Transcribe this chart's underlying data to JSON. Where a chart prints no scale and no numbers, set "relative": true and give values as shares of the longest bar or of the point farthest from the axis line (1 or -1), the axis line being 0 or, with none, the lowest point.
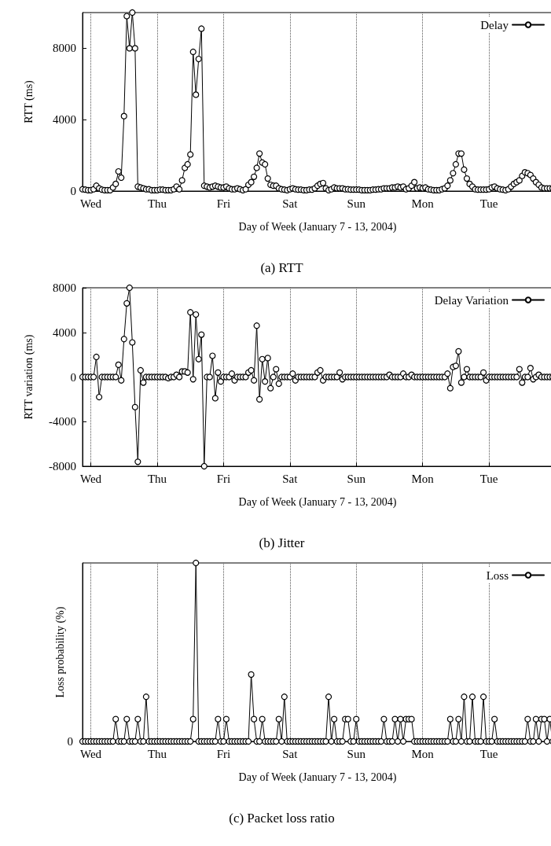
{
  "chart_data": [
    {
      "type": "line",
      "title": "(a) RTT",
      "xlabel": "Day of Week (January 7 - 13, 2004)",
      "ylabel": "RTT (ms)",
      "categories": [
        null,
        null,
        null,
        "Wed",
        null,
        null,
        null,
        null,
        null,
        null,
        null,
        null,
        null,
        null,
        null,
        null,
        null,
        null,
        null,
        null,
        null,
        null,
        null,
        null,
        null,
        null,
        null,
        "Thu",
        null,
        null,
        null,
        null,
        null,
        null,
        null,
        null,
        null,
        null,
        null,
        null,
        null,
        null,
        null,
        null,
        null,
        null,
        null,
        null,
        null,
        null,
        null,
        "Fri",
        null,
        null,
        null,
        null,
        null,
        null,
        null,
        null,
        null,
        null,
        null,
        null,
        null,
        null,
        null,
        null,
        null,
        null,
        null,
        null,
        null,
        null,
        null,
        "Sat",
        null,
        null,
        null,
        null,
        null,
        null,
        null,
        null,
        null,
        null,
        null,
        null,
        null,
        null,
        null,
        null,
        null,
        null,
        null,
        null,
        null,
        null,
        null,
        "Sun",
        null,
        null,
        null,
        null,
        null,
        null,
        null,
        null,
        null,
        null,
        null,
        null,
        null,
        null,
        null,
        null,
        null,
        null,
        null,
        null,
        null,
        null,
        null,
        "Mon",
        null,
        null,
        null,
        null,
        null,
        null,
        null,
        null,
        null,
        null,
        null,
        null,
        null,
        null,
        null,
        null,
        null,
        null,
        null,
        null,
        null,
        null,
        null,
        "Tue",
        null,
        null,
        null,
        null,
        null,
        null,
        null,
        null,
        null,
        null,
        null,
        null,
        null,
        null,
        null,
        null,
        null,
        null,
        null,
        null,
        null,
        null,
        null
      ],
      "ylim": [
        0,
        10000
      ],
      "yticks": [
        0,
        4000,
        8000
      ],
      "grid": "x",
      "legend": "top right",
      "marker": "circle",
      "line_style": "solid",
      "series": [
        {
          "name": "Delay",
          "color": "#000000",
          "values": [
            100,
            80,
            50,
            50,
            100,
            300,
            150,
            80,
            50,
            50,
            50,
            200,
            400,
            1100,
            750,
            4200,
            9800,
            8000,
            10000,
            8000,
            250,
            200,
            150,
            100,
            100,
            50,
            50,
            50,
            80,
            80,
            50,
            50,
            50,
            100,
            250,
            100,
            600,
            1300,
            1500,
            2050,
            7800,
            5400,
            7400,
            9100,
            300,
            250,
            200,
            250,
            300,
            250,
            200,
            200,
            250,
            150,
            100,
            100,
            150,
            100,
            50,
            100,
            350,
            500,
            800,
            1300,
            2100,
            1600,
            1500,
            700,
            350,
            300,
            300,
            150,
            100,
            80,
            50,
            100,
            150,
            100,
            80,
            80,
            50,
            50,
            80,
            80,
            150,
            300,
            400,
            450,
            150,
            50,
            100,
            200,
            150,
            150,
            150,
            100,
            100,
            80,
            80,
            80,
            80,
            50,
            50,
            50,
            50,
            80,
            80,
            100,
            100,
            150,
            150,
            150,
            200,
            200,
            250,
            200,
            250,
            100,
            150,
            300,
            500,
            150,
            200,
            150,
            200,
            100,
            80,
            50,
            50,
            50,
            100,
            150,
            300,
            600,
            1000,
            1500,
            2100,
            2100,
            1200,
            700,
            400,
            250,
            100,
            80,
            80,
            80,
            80,
            100,
            200,
            250,
            150,
            100,
            80,
            50,
            100,
            250,
            400,
            500,
            600,
            850,
            1050,
            1000,
            900,
            700,
            500,
            350,
            200,
            150,
            150,
            150,
            150
          ]
        }
      ]
    },
    {
      "type": "line",
      "title": "(b) Jitter",
      "xlabel": "Day of Week (January 7 - 13, 2004)",
      "ylabel": "RTT variation (ms)",
      "categories": [
        null,
        null,
        null,
        "Wed",
        null,
        null,
        null,
        null,
        null,
        null,
        null,
        null,
        null,
        null,
        null,
        null,
        null,
        null,
        null,
        null,
        null,
        null,
        null,
        null,
        null,
        null,
        null,
        "Thu",
        null,
        null,
        null,
        null,
        null,
        null,
        null,
        null,
        null,
        null,
        null,
        null,
        null,
        null,
        null,
        null,
        null,
        null,
        null,
        null,
        null,
        null,
        null,
        "Fri",
        null,
        null,
        null,
        null,
        null,
        null,
        null,
        null,
        null,
        null,
        null,
        null,
        null,
        null,
        null,
        null,
        null,
        null,
        null,
        null,
        null,
        null,
        null,
        "Sat",
        null,
        null,
        null,
        null,
        null,
        null,
        null,
        null,
        null,
        null,
        null,
        null,
        null,
        null,
        null,
        null,
        null,
        null,
        null,
        null,
        null,
        null,
        null,
        "Sun",
        null,
        null,
        null,
        null,
        null,
        null,
        null,
        null,
        null,
        null,
        null,
        null,
        null,
        null,
        null,
        null,
        null,
        null,
        null,
        null,
        null,
        null,
        null,
        "Mon",
        null,
        null,
        null,
        null,
        null,
        null,
        null,
        null,
        null,
        null,
        null,
        null,
        null,
        null,
        null,
        null,
        null,
        null,
        null,
        null,
        null,
        null,
        null,
        "Tue",
        null,
        null,
        null,
        null,
        null,
        null,
        null,
        null,
        null,
        null,
        null,
        null,
        null,
        null,
        null,
        null,
        null,
        null,
        null,
        null,
        null,
        null,
        null
      ],
      "ylim": [
        -8000,
        8000
      ],
      "yticks": [
        -8000,
        -4000,
        0,
        4000,
        8000
      ],
      "grid": "x",
      "legend": "top right",
      "marker": "circle",
      "line_style": "solid",
      "series": [
        {
          "name": "Delay Variation",
          "color": "#000000",
          "values": [
            0,
            0,
            0,
            0,
            0,
            1800,
            -1800,
            0,
            0,
            0,
            0,
            0,
            0,
            1100,
            -300,
            3400,
            6600,
            8000,
            3100,
            -2700,
            -7600,
            600,
            -500,
            0,
            0,
            0,
            0,
            0,
            0,
            0,
            0,
            -100,
            0,
            0,
            200,
            0,
            500,
            500,
            400,
            5800,
            -200,
            5600,
            1600,
            3800,
            -8000,
            0,
            0,
            1900,
            -1900,
            400,
            -400,
            0,
            0,
            0,
            300,
            -300,
            0,
            0,
            0,
            0,
            400,
            600,
            -300,
            4600,
            -2000,
            1600,
            -400,
            1700,
            -1000,
            0,
            700,
            -600,
            0,
            0,
            0,
            0,
            300,
            -300,
            0,
            0,
            0,
            0,
            0,
            0,
            0,
            400,
            600,
            -300,
            0,
            0,
            0,
            0,
            0,
            400,
            -200,
            0,
            0,
            0,
            0,
            0,
            0,
            0,
            0,
            0,
            0,
            0,
            0,
            0,
            0,
            0,
            0,
            200,
            0,
            0,
            0,
            0,
            300,
            0,
            0,
            200,
            0,
            0,
            0,
            0,
            0,
            0,
            0,
            0,
            0,
            0,
            0,
            0,
            300,
            -1000,
            900,
            1000,
            2300,
            -500,
            0,
            700,
            0,
            0,
            0,
            0,
            0,
            400,
            -300,
            0,
            0,
            0,
            0,
            0,
            0,
            0,
            0,
            0,
            0,
            0,
            700,
            -500,
            0,
            0,
            800,
            -200,
            0,
            200,
            0,
            0,
            0,
            0,
            0
          ]
        }
      ]
    },
    {
      "type": "line",
      "title": "(c) Packet loss ratio",
      "xlabel": "Day of Week (January 7 - 13, 2004)",
      "ylabel": "Loss probability (%)",
      "annotations": [
        "0"
      ],
      "relative": true,
      "categories": [
        null,
        null,
        null,
        "Wed",
        null,
        null,
        null,
        null,
        null,
        null,
        null,
        null,
        null,
        null,
        null,
        null,
        null,
        null,
        null,
        null,
        null,
        null,
        null,
        null,
        null,
        null,
        null,
        "Thu",
        null,
        null,
        null,
        null,
        null,
        null,
        null,
        null,
        null,
        null,
        null,
        null,
        null,
        null,
        null,
        null,
        null,
        null,
        null,
        null,
        null,
        null,
        null,
        "Fri",
        null,
        null,
        null,
        null,
        null,
        null,
        null,
        null,
        null,
        null,
        null,
        null,
        null,
        null,
        null,
        null,
        null,
        null,
        null,
        null,
        null,
        null,
        null,
        "Sat",
        null,
        null,
        null,
        null,
        null,
        null,
        null,
        null,
        null,
        null,
        null,
        null,
        null,
        null,
        null,
        null,
        null,
        null,
        null,
        null,
        null,
        null,
        null,
        "Sun",
        null,
        null,
        null,
        null,
        null,
        null,
        null,
        null,
        null,
        null,
        null,
        null,
        null,
        null,
        null,
        null,
        null,
        null,
        null,
        null,
        null,
        null,
        null,
        "Mon",
        null,
        null,
        null,
        null,
        null,
        null,
        null,
        null,
        null,
        null,
        null,
        null,
        null,
        null,
        null,
        null,
        null,
        null,
        null,
        null,
        null,
        null,
        null,
        "Tue",
        null,
        null,
        null,
        null,
        null,
        null,
        null,
        null,
        null,
        null,
        null,
        null,
        null,
        null,
        null,
        null,
        null,
        null,
        null,
        null,
        null,
        null,
        null
      ],
      "grid": "x",
      "legend": "top right",
      "marker": "circle",
      "line_style": "solid",
      "series": [
        {
          "name": "Loss",
          "color": "#000000",
          "values": [
            0,
            0,
            0,
            0,
            0,
            0,
            0,
            0,
            0,
            0,
            0,
            0,
            0.125,
            0,
            0,
            0,
            0.125,
            0,
            0,
            0,
            0.125,
            0,
            0,
            0.25,
            0,
            0,
            0,
            0,
            0,
            0,
            0,
            0,
            0,
            0,
            0,
            0,
            0,
            0,
            0,
            0,
            0.125,
            1,
            0,
            0,
            0,
            0,
            0,
            0,
            0,
            0.125,
            0,
            0,
            0.125,
            0,
            0,
            0,
            0,
            0,
            0,
            0,
            0,
            0.375,
            0.125,
            0,
            0,
            0.125,
            0,
            0,
            0,
            0,
            0,
            0.125,
            0,
            0.25,
            0,
            0,
            0,
            0,
            0,
            0,
            0,
            0,
            0,
            0,
            0,
            0,
            0,
            0,
            0,
            0.25,
            0,
            0.125,
            0,
            0,
            0,
            0.125,
            0.125,
            0,
            0,
            0.125,
            0,
            0,
            0,
            0,
            0,
            0,
            0,
            0,
            0,
            0.125,
            0,
            0,
            0,
            0.125,
            0,
            0.125,
            0,
            0.125,
            0.125,
            0.125,
            0,
            0,
            0,
            0,
            0,
            0,
            0,
            0,
            0,
            0,
            0,
            0,
            0,
            0.125,
            0,
            0,
            0.125,
            0,
            0.25,
            0,
            0,
            0.25,
            0,
            0,
            0,
            0.25,
            0,
            0,
            0,
            0.125,
            0,
            0,
            0,
            0,
            0,
            0,
            0,
            0,
            0,
            0,
            0,
            0.125,
            0,
            0,
            0.125,
            0,
            0.125,
            0.125,
            0,
            0.125,
            0
          ]
        }
      ]
    }
  ]
}
